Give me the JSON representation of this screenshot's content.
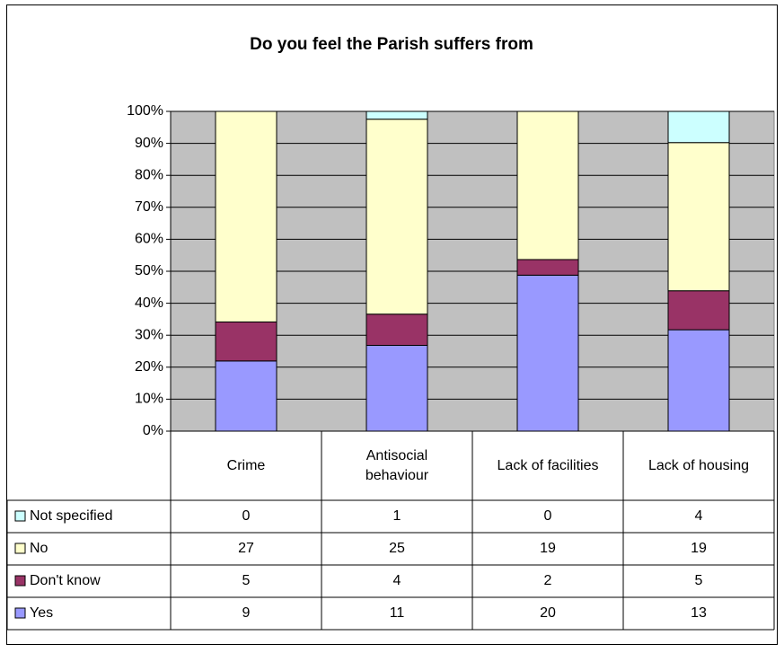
{
  "chart_data": {
    "type": "bar",
    "stacking": "percent",
    "title": "Do you feel the Parish suffers from",
    "categories": [
      "Crime",
      "Antisocial behaviour",
      "Lack of facilities",
      "Lack of housing"
    ],
    "series": [
      {
        "name": "Yes",
        "color": "#9999ff",
        "values": [
          9,
          11,
          20,
          13
        ]
      },
      {
        "name": "Don't know",
        "color": "#993366",
        "values": [
          5,
          4,
          2,
          5
        ]
      },
      {
        "name": "No",
        "color": "#ffffcc",
        "values": [
          27,
          25,
          19,
          19
        ]
      },
      {
        "name": "Not specified",
        "color": "#ccffff",
        "values": [
          0,
          1,
          0,
          4
        ]
      }
    ],
    "ylim": [
      0,
      100
    ],
    "yticks": [
      {
        "value": 0,
        "label": "0%"
      },
      {
        "value": 10,
        "label": "10%"
      },
      {
        "value": 20,
        "label": "20%"
      },
      {
        "value": 30,
        "label": "30%"
      },
      {
        "value": 40,
        "label": "40%"
      },
      {
        "value": 50,
        "label": "50%"
      },
      {
        "value": 60,
        "label": "60%"
      },
      {
        "value": 70,
        "label": "70%"
      },
      {
        "value": 80,
        "label": "80%"
      },
      {
        "value": 90,
        "label": "90%"
      },
      {
        "value": 100,
        "label": "100%"
      }
    ],
    "grid": true,
    "plot_background": "#c0c0c0",
    "data_table": true
  }
}
